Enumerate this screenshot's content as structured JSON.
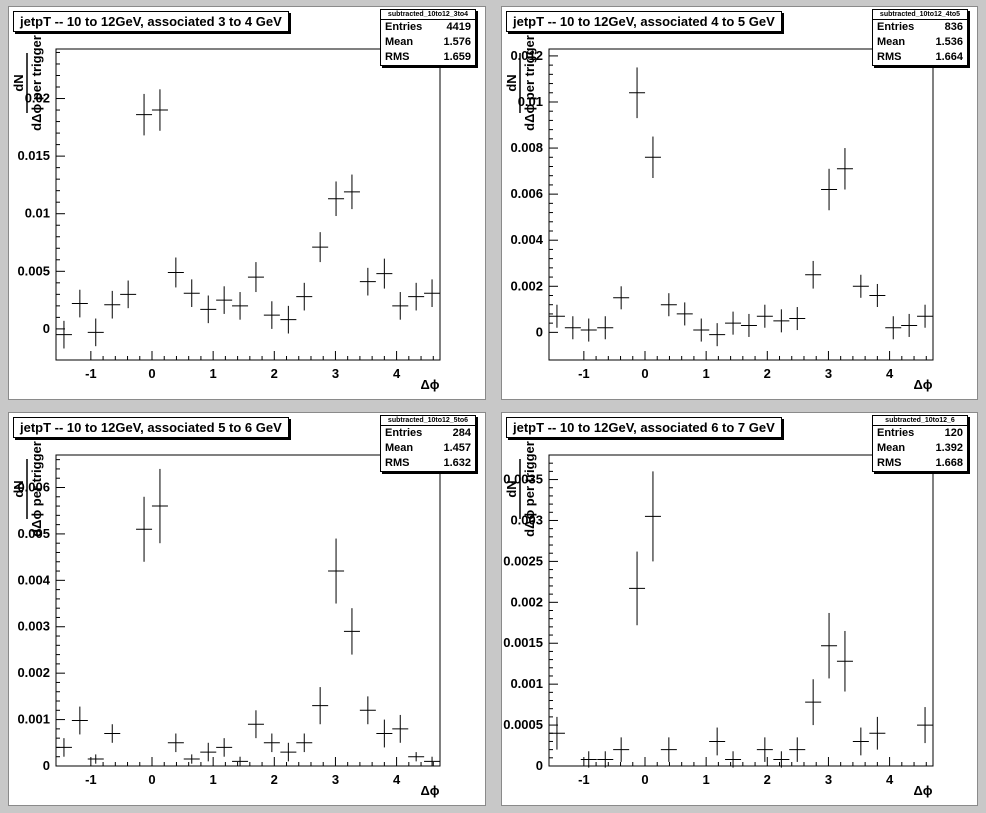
{
  "chart_data": [
    {
      "type": "scatter",
      "title": "jetpT -- 10 to 12GeV, associated 3 to 4 GeV",
      "stats": {
        "name": "subtracted_10to12_3to4",
        "entries_label": "Entries",
        "entries": "4419",
        "mean_label": "Mean",
        "mean": "1.576",
        "rms_label": "RMS",
        "rms": "1.659"
      },
      "xlabel": "Δϕ",
      "ylabel_num": "dN",
      "ylabel_den": "dΔϕ per trigger",
      "xlim": [
        -1.57,
        4.71
      ],
      "ylim": [
        -0.0027,
        0.0243
      ],
      "xticks": [
        "-1",
        "0",
        "1",
        "2",
        "3",
        "4"
      ],
      "xtick_values": [
        -1,
        0,
        1,
        2,
        3,
        4
      ],
      "yticks": [
        "0",
        "0.005",
        "0.01",
        "0.015",
        "0.02"
      ],
      "ytick_values": [
        0,
        0.005,
        0.01,
        0.015,
        0.02
      ],
      "x": [
        -1.44,
        -1.18,
        -0.92,
        -0.65,
        -0.39,
        -0.13,
        0.13,
        0.39,
        0.65,
        0.92,
        1.18,
        1.44,
        1.7,
        1.96,
        2.23,
        2.49,
        2.75,
        3.01,
        3.27,
        3.53,
        3.8,
        4.06,
        4.32,
        4.58
      ],
      "y": [
        -0.0005,
        0.0022,
        -0.0003,
        0.0021,
        0.003,
        0.0186,
        0.019,
        0.0049,
        0.0031,
        0.0017,
        0.0025,
        0.002,
        0.0045,
        0.0012,
        0.0008,
        0.0028,
        0.0071,
        0.0113,
        0.0119,
        0.0041,
        0.0048,
        0.002,
        0.0028,
        0.0031
      ],
      "yerr": [
        0.0012,
        0.0012,
        0.0012,
        0.0012,
        0.0012,
        0.0018,
        0.0018,
        0.0013,
        0.0012,
        0.0012,
        0.0012,
        0.0012,
        0.0013,
        0.0012,
        0.0012,
        0.0012,
        0.0013,
        0.0015,
        0.0015,
        0.0012,
        0.0013,
        0.0012,
        0.0012,
        0.0012
      ]
    },
    {
      "type": "scatter",
      "title": "jetpT -- 10 to 12GeV, associated 4 to 5 GeV",
      "stats": {
        "name": "subtracted_10to12_4to5",
        "entries_label": "Entries",
        "entries": "836",
        "mean_label": "Mean",
        "mean": "1.536",
        "rms_label": "RMS",
        "rms": "1.664"
      },
      "xlabel": "Δϕ",
      "ylabel_num": "dN",
      "ylabel_den": "dΔϕ per trigger",
      "xlim": [
        -1.57,
        4.71
      ],
      "ylim": [
        -0.0012,
        0.0123
      ],
      "xticks": [
        "-1",
        "0",
        "1",
        "2",
        "3",
        "4"
      ],
      "xtick_values": [
        -1,
        0,
        1,
        2,
        3,
        4
      ],
      "yticks": [
        "0",
        "0.002",
        "0.004",
        "0.006",
        "0.008",
        "0.01",
        "0.012"
      ],
      "ytick_values": [
        0,
        0.002,
        0.004,
        0.006,
        0.008,
        0.01,
        0.012
      ],
      "x": [
        -1.44,
        -1.18,
        -0.92,
        -0.65,
        -0.39,
        -0.13,
        0.13,
        0.39,
        0.65,
        0.92,
        1.18,
        1.44,
        1.7,
        1.96,
        2.23,
        2.49,
        2.75,
        3.01,
        3.27,
        3.53,
        3.8,
        4.06,
        4.32,
        4.58
      ],
      "y": [
        0.0007,
        0.0002,
        0.0001,
        0.0002,
        0.0015,
        0.0104,
        0.0076,
        0.0012,
        0.0008,
        0.0001,
        -0.0001,
        0.0004,
        0.0003,
        0.0007,
        0.0005,
        0.0006,
        0.0025,
        0.0062,
        0.0071,
        0.002,
        0.0016,
        0.0002,
        0.0003,
        0.0007
      ],
      "yerr": [
        0.0005,
        0.0005,
        0.0005,
        0.0005,
        0.0005,
        0.0011,
        0.0009,
        0.0005,
        0.0005,
        0.0005,
        0.0005,
        0.0005,
        0.0005,
        0.0005,
        0.0005,
        0.0005,
        0.0006,
        0.0009,
        0.0009,
        0.0005,
        0.0005,
        0.0005,
        0.0005,
        0.0005
      ]
    },
    {
      "type": "scatter",
      "title": "jetpT -- 10 to 12GeV, associated 5 to 6 GeV",
      "stats": {
        "name": "subtracted_10to12_5to6",
        "entries_label": "Entries",
        "entries": "284",
        "mean_label": "Mean",
        "mean": "1.457",
        "rms_label": "RMS",
        "rms": "1.632"
      },
      "xlabel": "Δϕ",
      "ylabel_num": "dN",
      "ylabel_den": "dΔϕ per trigger",
      "xlim": [
        -1.57,
        4.71
      ],
      "ylim": [
        0,
        0.0067
      ],
      "xticks": [
        "-1",
        "0",
        "1",
        "2",
        "3",
        "4"
      ],
      "xtick_values": [
        -1,
        0,
        1,
        2,
        3,
        4
      ],
      "yticks": [
        "0",
        "0.001",
        "0.002",
        "0.003",
        "0.004",
        "0.005",
        "0.006"
      ],
      "ytick_values": [
        0,
        0.001,
        0.002,
        0.003,
        0.004,
        0.005,
        0.006
      ],
      "x": [
        -1.44,
        -1.18,
        -0.92,
        -0.65,
        -0.39,
        -0.13,
        0.13,
        0.39,
        0.65,
        0.92,
        1.18,
        1.44,
        1.7,
        1.96,
        2.23,
        2.49,
        2.75,
        3.01,
        3.27,
        3.53,
        3.8,
        4.06,
        4.32,
        4.58
      ],
      "y": [
        0.0004,
        0.00098,
        0.00015,
        0.0007,
        0,
        0.0051,
        0.0056,
        0.0005,
        0.00015,
        0.0003,
        0.0004,
        0.0001,
        0.0009,
        0.0005,
        0.0003,
        0.0005,
        0.0013,
        0.0042,
        0.0029,
        0.0012,
        0.0007,
        0.0008,
        0.0002,
        0.0001
      ],
      "yerr": [
        0.0002,
        0.0003,
        0.0001,
        0.0002,
        0,
        0.0007,
        0.0008,
        0.0002,
        0.0001,
        0.0002,
        0.0002,
        0.0001,
        0.0003,
        0.0002,
        0.0002,
        0.0002,
        0.0004,
        0.0007,
        0.0005,
        0.0003,
        0.0003,
        0.0003,
        0.0001,
        0.0001
      ]
    },
    {
      "type": "scatter",
      "title": "jetpT -- 10 to 12GeV, associated 6 to 7 GeV",
      "stats": {
        "name": "subtracted_10to12_6",
        "entries_label": "Entries",
        "entries": "120",
        "mean_label": "Mean",
        "mean": "1.392",
        "rms_label": "RMS",
        "rms": "1.668"
      },
      "xlabel": "Δϕ",
      "ylabel_num": "dN",
      "ylabel_den": "dΔϕ per trigger",
      "xlim": [
        -1.57,
        4.71
      ],
      "ylim": [
        0,
        0.0038
      ],
      "xticks": [
        "-1",
        "0",
        "1",
        "2",
        "3",
        "4"
      ],
      "xtick_values": [
        -1,
        0,
        1,
        2,
        3,
        4
      ],
      "yticks": [
        "0",
        "0.0005",
        "0.001",
        "0.0015",
        "0.002",
        "0.0025",
        "0.003",
        "0.0035"
      ],
      "ytick_values": [
        0,
        0.0005,
        0.001,
        0.0015,
        0.002,
        0.0025,
        0.003,
        0.0035
      ],
      "x": [
        -1.44,
        -1.18,
        -0.92,
        -0.65,
        -0.39,
        -0.13,
        0.13,
        0.39,
        0.65,
        0.92,
        1.18,
        1.44,
        1.7,
        1.96,
        2.23,
        2.49,
        2.75,
        3.01,
        3.27,
        3.53,
        3.8,
        4.06,
        4.32,
        4.58
      ],
      "y": [
        0.0004,
        0,
        8e-05,
        8e-05,
        0.0002,
        0.00217,
        0.00305,
        0.0002,
        0,
        0,
        0.0003,
        8e-05,
        0,
        0.0002,
        8e-05,
        0.0002,
        0.00078,
        0.00147,
        0.00128,
        0.0003,
        0.0004,
        0,
        0,
        0.0005
      ],
      "yerr": [
        0.0002,
        0,
        0.0001,
        0.0001,
        0.00015,
        0.00045,
        0.00055,
        0.00015,
        0,
        0,
        0.00017,
        0.0001,
        0,
        0.00015,
        0.0001,
        0.00015,
        0.00028,
        0.0004,
        0.00037,
        0.00017,
        0.0002,
        0,
        0,
        0.00022
      ]
    }
  ]
}
